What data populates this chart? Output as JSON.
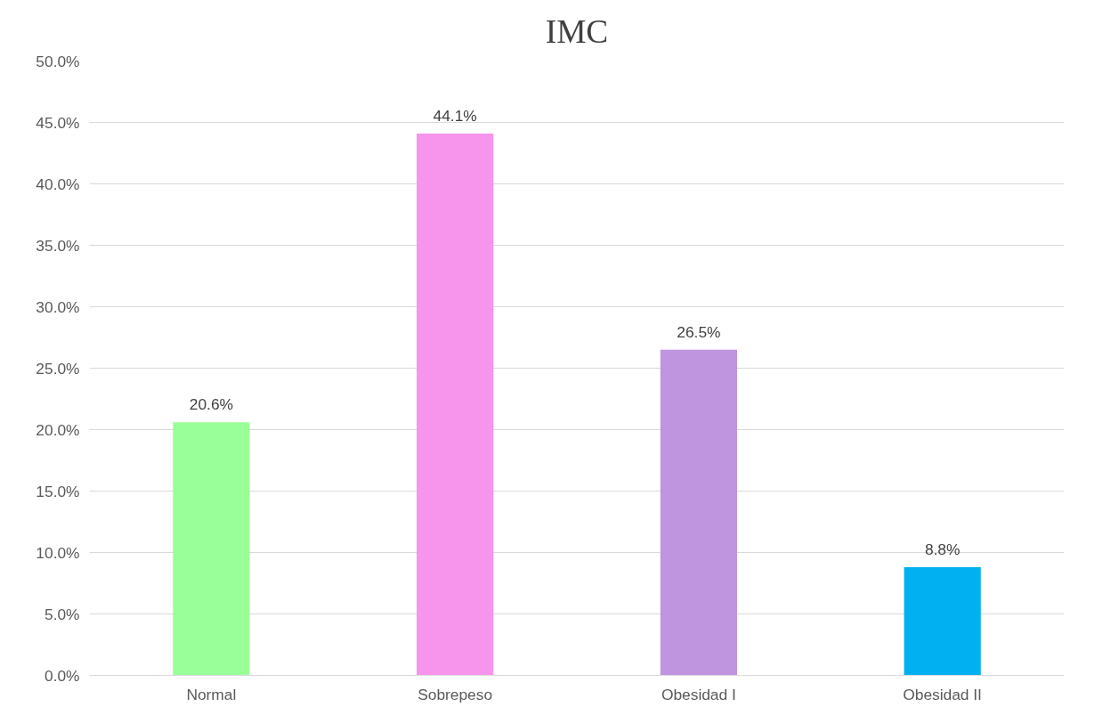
{
  "chart_data": {
    "type": "bar",
    "title": "IMC",
    "categories": [
      "Normal",
      "Sobrepeso",
      "Obesidad I",
      "Obesidad II"
    ],
    "values": [
      20.6,
      44.1,
      26.5,
      8.8
    ],
    "colors": [
      "#99ff99",
      "#f794ec",
      "#bf95df",
      "#00b0f0"
    ],
    "value_labels": [
      "20.6%",
      "44.1%",
      "26.5%",
      "8.8%"
    ],
    "ylim": [
      0,
      50
    ],
    "yticks": [
      {
        "value": 0,
        "label": "0.0%"
      },
      {
        "value": 5,
        "label": "5.0%"
      },
      {
        "value": 10,
        "label": "10.0%"
      },
      {
        "value": 15,
        "label": "15.0%"
      },
      {
        "value": 20,
        "label": "20.0%"
      },
      {
        "value": 25,
        "label": "25.0%"
      },
      {
        "value": 30,
        "label": "30.0%"
      },
      {
        "value": 35,
        "label": "35.0%"
      },
      {
        "value": 40,
        "label": "40.0%"
      },
      {
        "value": 45,
        "label": "45.0%"
      },
      {
        "value": 50,
        "label": "50.0%"
      }
    ],
    "grid": "y"
  }
}
